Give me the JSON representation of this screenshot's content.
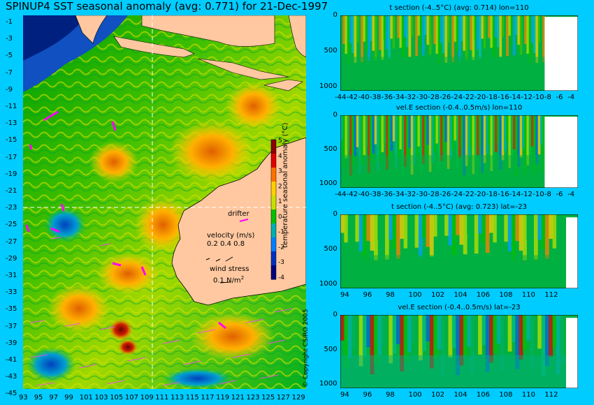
{
  "title": "SPINUP4 SST seasonal anomaly (avg: 0.771) for 21-Dec-1997",
  "map": {
    "lat_ticks": [
      "-1",
      "-3",
      "-5",
      "-7",
      "-9",
      "-11",
      "-13",
      "-15",
      "-17",
      "-19",
      "-21",
      "-23",
      "-25",
      "-27",
      "-29",
      "-31",
      "-33",
      "-35",
      "-37",
      "-39",
      "-41",
      "-43",
      "-45"
    ],
    "lon_ticks": [
      "93",
      "95",
      "97",
      "99",
      "101",
      "103",
      "105",
      "107",
      "109",
      "111",
      "113",
      "115",
      "117",
      "119",
      "121",
      "123",
      "125",
      "127",
      "129"
    ],
    "drifter_label": "drifter",
    "velocity_label": "velocity (m/s)",
    "velocity_scale": "0.2 0.4 0.8",
    "wind_label": "wind stress",
    "wind_scale": "0.1 N/m",
    "wind_scale_exp": "2",
    "colorbar": {
      "label": "temperature seasonal anomaly (°C)",
      "ticks": [
        "5",
        "4",
        "3",
        "2",
        "1",
        "0",
        "-1",
        "-2",
        "-3",
        "-4"
      ],
      "colors": [
        "#8b0000",
        "#e00000",
        "#ff7000",
        "#ffd000",
        "#c8e000",
        "#00c000",
        "#00b0b0",
        "#0080ff",
        "#0030c0",
        "#000080"
      ]
    },
    "land_color": "#ffc8a0"
  },
  "copyright": "© Copyright CSIRO 2005",
  "panels": [
    {
      "title": "t section (-4..5°C) (avg: 0.714) lon=110",
      "yticks": [
        "0",
        "500",
        "1000"
      ],
      "xticks": [
        "-44",
        "-42",
        "-40",
        "-38",
        "-36",
        "-34",
        "-32",
        "-30",
        "-28",
        "-26",
        "-24",
        "-22",
        "-20",
        "-18",
        "-16",
        "-14",
        "-12",
        "-10",
        "-8",
        "-6",
        "-4"
      ]
    },
    {
      "title": "vel.E section (-0.4..0.5m/s) lon=110",
      "yticks": [
        "0",
        "500",
        "1000"
      ],
      "xticks": [
        "-44",
        "-42",
        "-40",
        "-38",
        "-36",
        "-34",
        "-32",
        "-30",
        "-28",
        "-26",
        "-24",
        "-22",
        "-20",
        "-18",
        "-16",
        "-14",
        "-12",
        "-10",
        "-8",
        "-6",
        "-4"
      ]
    },
    {
      "title": "t section (-4..5°C) (avg: 0.723) lat=-23",
      "yticks": [
        "0",
        "500",
        "1000"
      ],
      "xticks": [
        "94",
        "96",
        "98",
        "100",
        "102",
        "104",
        "106",
        "108",
        "110",
        "112"
      ]
    },
    {
      "title": "vel.E section (-0.4..0.5m/s) lat=-23",
      "yticks": [
        "0",
        "500",
        "1000"
      ],
      "xticks": [
        "94",
        "96",
        "98",
        "100",
        "102",
        "104",
        "106",
        "108",
        "110",
        "112"
      ]
    }
  ]
}
